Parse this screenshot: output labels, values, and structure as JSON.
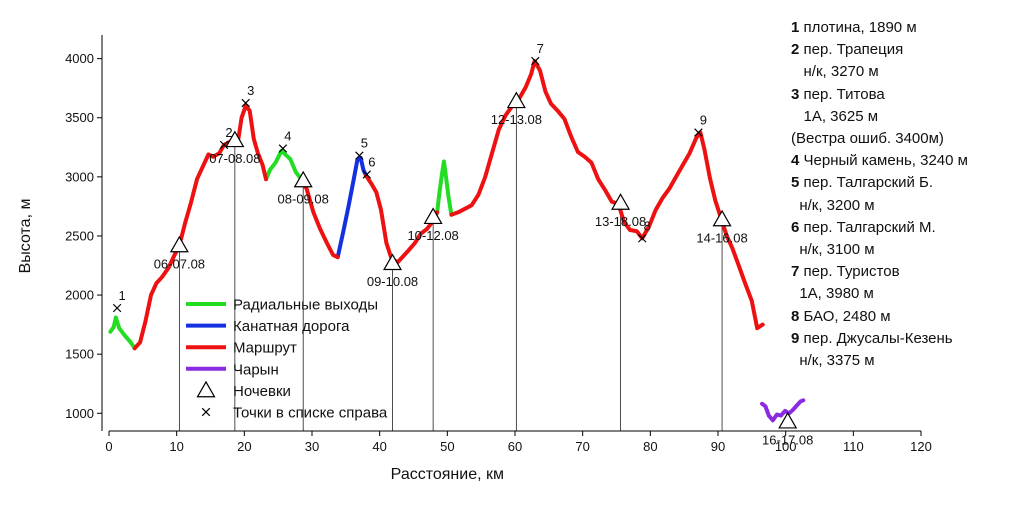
{
  "chart_data": {
    "type": "line",
    "xlabel": "Расстояние, км",
    "ylabel": "Высота, м",
    "xlim": [
      0,
      120
    ],
    "ylim": [
      850,
      4200
    ],
    "x_ticks": [
      0,
      10,
      20,
      30,
      40,
      50,
      60,
      70,
      80,
      90,
      100,
      110,
      120
    ],
    "y_ticks": [
      1000,
      1500,
      2000,
      2500,
      3000,
      3500,
      4000
    ],
    "grid": false,
    "legend_position": "bottom-left",
    "series": [
      {
        "name": "Радиальные выходы",
        "color": "#22dd22",
        "segments": [
          [
            [
              0.2,
              1690
            ],
            [
              0.7,
              1730
            ],
            [
              1.0,
              1810
            ],
            [
              1.5,
              1720
            ],
            [
              2.3,
              1660
            ],
            [
              3.2,
              1600
            ],
            [
              3.8,
              1550
            ]
          ],
          [
            [
              23.2,
              2980
            ],
            [
              23.8,
              3060
            ],
            [
              24.6,
              3120
            ],
            [
              25.5,
              3220
            ],
            [
              26.8,
              3150
            ],
            [
              27.6,
              3040
            ],
            [
              28.4,
              2980
            ]
          ],
          [
            [
              48.5,
              2700
            ],
            [
              48.8,
              2850
            ],
            [
              49.2,
              3020
            ],
            [
              49.5,
              3130
            ],
            [
              49.8,
              3000
            ],
            [
              50.2,
              2820
            ],
            [
              50.6,
              2680
            ]
          ]
        ]
      },
      {
        "name": "Канатная дорога",
        "color": "#1530e0",
        "segments": [
          [
            [
              33.8,
              2320
            ],
            [
              34.6,
              2530
            ],
            [
              35.4,
              2750
            ],
            [
              36.1,
              2960
            ],
            [
              36.7,
              3140
            ],
            [
              37.2,
              3160
            ],
            [
              37.6,
              3060
            ],
            [
              38.0,
              3010
            ]
          ]
        ]
      },
      {
        "name": "Маршрут",
        "color": "#ee1111",
        "segments": [
          [
            [
              3.8,
              1550
            ],
            [
              4.6,
              1600
            ],
            [
              5.4,
              1780
            ],
            [
              6.2,
              2000
            ],
            [
              7.0,
              2100
            ],
            [
              7.8,
              2150
            ],
            [
              8.8,
              2230
            ],
            [
              9.6,
              2330
            ],
            [
              10.4,
              2420
            ],
            [
              11.2,
              2600
            ],
            [
              12.1,
              2780
            ],
            [
              13.0,
              2980
            ],
            [
              13.8,
              3080
            ],
            [
              14.7,
              3190
            ],
            [
              15.4,
              3170
            ],
            [
              16.3,
              3200
            ],
            [
              17.0,
              3270
            ],
            [
              18.0,
              3300
            ],
            [
              19.0,
              3280
            ],
            [
              19.6,
              3500
            ],
            [
              20.2,
              3600
            ],
            [
              20.8,
              3560
            ],
            [
              21.4,
              3320
            ],
            [
              22.0,
              3200
            ],
            [
              22.7,
              3100
            ],
            [
              23.2,
              2980
            ]
          ],
          [
            [
              28.4,
              2980
            ],
            [
              29.2,
              2900
            ],
            [
              30.2,
              2700
            ],
            [
              31.2,
              2560
            ],
            [
              32.2,
              2440
            ],
            [
              33.1,
              2340
            ],
            [
              33.8,
              2320
            ]
          ],
          [
            [
              38.0,
              3010
            ],
            [
              38.8,
              2940
            ],
            [
              39.5,
              2870
            ],
            [
              40.2,
              2720
            ],
            [
              41.0,
              2440
            ],
            [
              41.8,
              2300
            ],
            [
              42.7,
              2280
            ],
            [
              43.5,
              2330
            ],
            [
              44.3,
              2380
            ],
            [
              45.2,
              2440
            ],
            [
              46.1,
              2520
            ],
            [
              47.0,
              2560
            ],
            [
              47.8,
              2620
            ],
            [
              48.5,
              2700
            ]
          ],
          [
            [
              50.6,
              2680
            ],
            [
              51.6,
              2700
            ],
            [
              52.6,
              2730
            ],
            [
              53.6,
              2760
            ],
            [
              54.6,
              2850
            ],
            [
              55.6,
              3000
            ],
            [
              56.6,
              3200
            ],
            [
              57.6,
              3400
            ],
            [
              58.6,
              3520
            ],
            [
              59.6,
              3600
            ],
            [
              60.6,
              3660
            ],
            [
              61.6,
              3760
            ],
            [
              62.4,
              3870
            ],
            [
              62.9,
              3980
            ],
            [
              63.7,
              3900
            ],
            [
              64.5,
              3720
            ],
            [
              65.3,
              3620
            ],
            [
              66.3,
              3560
            ],
            [
              67.3,
              3490
            ],
            [
              68.3,
              3340
            ],
            [
              69.3,
              3210
            ],
            [
              70.3,
              3170
            ],
            [
              71.3,
              3120
            ],
            [
              72.3,
              2980
            ],
            [
              73.3,
              2890
            ],
            [
              74.3,
              2790
            ],
            [
              75.3,
              2770
            ],
            [
              76.1,
              2620
            ],
            [
              77.0,
              2550
            ],
            [
              78.0,
              2540
            ],
            [
              78.8,
              2480
            ],
            [
              79.8,
              2580
            ],
            [
              80.8,
              2720
            ],
            [
              81.8,
              2820
            ],
            [
              82.8,
              2900
            ],
            [
              83.8,
              3000
            ],
            [
              84.8,
              3100
            ],
            [
              85.8,
              3200
            ],
            [
              86.8,
              3330
            ],
            [
              87.4,
              3375
            ],
            [
              88.0,
              3230
            ],
            [
              88.8,
              2990
            ],
            [
              89.6,
              2800
            ],
            [
              90.5,
              2640
            ],
            [
              91.3,
              2500
            ],
            [
              92.1,
              2400
            ],
            [
              93.0,
              2260
            ],
            [
              94.0,
              2100
            ],
            [
              95.0,
              1950
            ],
            [
              95.8,
              1720
            ],
            [
              96.6,
              1750
            ]
          ]
        ]
      },
      {
        "name": "Чарын",
        "color": "#8a2be2",
        "segments": [
          [
            [
              96.5,
              1080
            ],
            [
              97.0,
              1060
            ],
            [
              97.5,
              980
            ],
            [
              98.1,
              940
            ],
            [
              98.7,
              990
            ],
            [
              99.3,
              980
            ],
            [
              99.9,
              1020
            ],
            [
              100.5,
              1000
            ],
            [
              101.1,
              1030
            ],
            [
              101.7,
              1070
            ],
            [
              102.2,
              1100
            ],
            [
              102.6,
              1110
            ]
          ]
        ]
      }
    ],
    "camps": [
      {
        "label": "06-07.08",
        "x": 10.4,
        "y": 2420
      },
      {
        "label": "07-08.08",
        "x": 18.6,
        "y": 3310
      },
      {
        "label": "08-09.08",
        "x": 28.7,
        "y": 2970
      },
      {
        "label": "09-10.08",
        "x": 41.9,
        "y": 2270
      },
      {
        "label": "10-12.08",
        "x": 47.9,
        "y": 2660
      },
      {
        "label": "12-13.08",
        "x": 60.2,
        "y": 3640
      },
      {
        "label": "13-18.08",
        "x": 75.6,
        "y": 2780
      },
      {
        "label": "14-16.08",
        "x": 90.6,
        "y": 2640
      },
      {
        "label": "16-17.08",
        "x": 100.3,
        "y": 930
      }
    ],
    "points": [
      {
        "label": "1",
        "x": 1.2,
        "y": 1890
      },
      {
        "label": "2",
        "x": 17.0,
        "y": 3270
      },
      {
        "label": "3",
        "x": 20.2,
        "y": 3625
      },
      {
        "label": "4",
        "x": 25.7,
        "y": 3240
      },
      {
        "label": "5",
        "x": 37.0,
        "y": 3180
      },
      {
        "label": "6",
        "x": 38.1,
        "y": 3020
      },
      {
        "label": "7",
        "x": 63.0,
        "y": 3980
      },
      {
        "label": "8",
        "x": 78.8,
        "y": 2480
      },
      {
        "label": "9",
        "x": 87.1,
        "y": 3375
      }
    ],
    "legend": [
      {
        "label": "Радиальные выходы",
        "kind": "line",
        "color": "#22dd22"
      },
      {
        "label": "Канатная дорога",
        "kind": "line",
        "color": "#1530e0"
      },
      {
        "label": "Маршрут",
        "kind": "line",
        "color": "#ee1111"
      },
      {
        "label": "Чарын",
        "kind": "line",
        "color": "#8a2be2"
      },
      {
        "label": "Ночевки",
        "kind": "triangle",
        "color": "#000000"
      },
      {
        "label": "Точки в списке справа",
        "kind": "cross",
        "color": "#000000"
      }
    ]
  },
  "side_list": [
    {
      "num": "1",
      "lines": [
        " плотина, 1890 м"
      ]
    },
    {
      "num": "2",
      "lines": [
        " пер. Трапеция",
        "   н/к, 3270 м"
      ]
    },
    {
      "num": "3",
      "lines": [
        " пер. Титова",
        "   1А, 3625 м",
        "(Вестра ошиб. 3400м)"
      ]
    },
    {
      "num": "4",
      "lines": [
        " Черный камень, 3240 м"
      ]
    },
    {
      "num": "5",
      "lines": [
        " пер. Талгарский Б.",
        "  н/к, 3200 м"
      ]
    },
    {
      "num": "6",
      "lines": [
        " пер. Талгарский М.",
        "  н/к, 3100 м"
      ]
    },
    {
      "num": "7",
      "lines": [
        " пер. Туристов",
        "  1А, 3980 м"
      ]
    },
    {
      "num": "8",
      "lines": [
        " БАО, 2480 м"
      ]
    },
    {
      "num": "9",
      "lines": [
        " пер. Джусалы-Кезень",
        "  н/к, 3375 м"
      ]
    }
  ]
}
